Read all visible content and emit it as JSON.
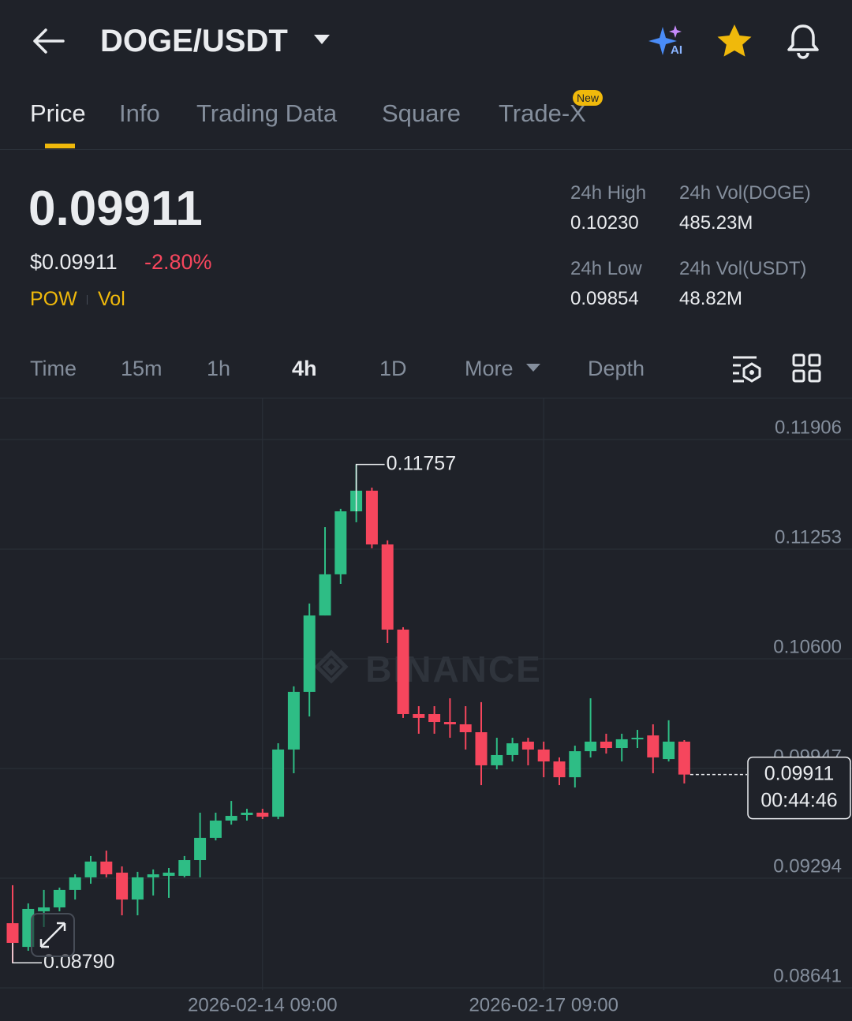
{
  "header": {
    "title": "DOGE/USDT"
  },
  "tabs": [
    "Price",
    "Info",
    "Trading Data",
    "Square",
    "Trade-X"
  ],
  "badge": "New",
  "price": {
    "last": "0.09911",
    "usd": "$0.09911",
    "change": "-2.80%",
    "tags": [
      "POW",
      "Vol"
    ]
  },
  "stats": [
    {
      "label": "24h High",
      "value": "0.10230"
    },
    {
      "label": "24h Vol(DOGE)",
      "value": "485.23M"
    },
    {
      "label": "24h Low",
      "value": "0.09854"
    },
    {
      "label": "24h Vol(USDT)",
      "value": "48.82M"
    }
  ],
  "intervals": [
    "Time",
    "15m",
    "1h",
    "4h",
    "1D",
    "More",
    "Depth"
  ],
  "chart_data": {
    "type": "candlestick",
    "watermark": "BINANCE",
    "categories": [
      null,
      null,
      null,
      null,
      null,
      null,
      null,
      null,
      null,
      null,
      null,
      null,
      null,
      null,
      null,
      null,
      "2026-02-14 09:00",
      null,
      null,
      null,
      null,
      null,
      null,
      null,
      null,
      null,
      null,
      null,
      null,
      null,
      null,
      null,
      null,
      null,
      "2026-02-17 09:00",
      null,
      null,
      null,
      null,
      null,
      null,
      null,
      null,
      null
    ],
    "open": [
      0.09026,
      0.08885,
      0.09097,
      0.0912,
      0.09224,
      0.09299,
      0.09393,
      0.09327,
      0.09167,
      0.09299,
      0.09308,
      0.09308,
      0.09402,
      0.09534,
      0.09637,
      0.0967,
      0.09684,
      0.0966,
      0.1006,
      0.10403,
      0.10858,
      0.11103,
      0.11478,
      0.11601,
      0.11281,
      0.10774,
      0.10271,
      0.10271,
      0.10224,
      0.1021,
      0.10163,
      0.09966,
      0.10027,
      0.10107,
      0.1006,
      0.09989,
      0.09895,
      0.1005,
      0.10107,
      0.10069,
      0.10121,
      0.10144,
      0.10003,
      0.10107
    ],
    "high": [
      0.09252,
      0.09144,
      0.09224,
      0.09238,
      0.09317,
      0.09426,
      0.09458,
      0.09364,
      0.09332,
      0.09346,
      0.09355,
      0.09426,
      0.09684,
      0.09684,
      0.09754,
      0.09707,
      0.09707,
      0.10097,
      0.10436,
      0.10929,
      0.11384,
      0.11493,
      0.11757,
      0.11619,
      0.11305,
      0.10788,
      0.10318,
      0.10318,
      0.10365,
      0.10318,
      0.10342,
      0.1013,
      0.1013,
      0.1013,
      0.10107,
      0.10013,
      0.10083,
      0.10365,
      0.10154,
      0.10154,
      0.10177,
      0.1021,
      0.10234,
      0.10116
    ],
    "low": [
      0.0879,
      0.08862,
      0.09003,
      0.09097,
      0.09167,
      0.09261,
      0.09299,
      0.09073,
      0.09073,
      0.09191,
      0.09177,
      0.09299,
      0.09299,
      0.09519,
      0.09613,
      0.09637,
      0.09646,
      0.09646,
      0.09919,
      0.10257,
      0.10858,
      0.11046,
      0.11413,
      0.11258,
      0.10694,
      0.10248,
      0.10154,
      0.10154,
      0.1013,
      0.1006,
      0.09848,
      0.09942,
      0.09989,
      0.09966,
      0.09895,
      0.09848,
      0.09834,
      0.10013,
      0.10036,
      0.09989,
      0.10069,
      0.09919,
      0.09989,
      0.09858
    ],
    "close": [
      0.08909,
      0.09111,
      0.0912,
      0.09224,
      0.09299,
      0.09393,
      0.09317,
      0.09167,
      0.09299,
      0.09317,
      0.09327,
      0.09402,
      0.09534,
      0.09637,
      0.09665,
      0.09684,
      0.0966,
      0.1006,
      0.10403,
      0.10858,
      0.11103,
      0.11478,
      0.11601,
      0.11281,
      0.10774,
      0.10271,
      0.10248,
      0.10224,
      0.1021,
      0.10163,
      0.09966,
      0.10027,
      0.10097,
      0.1006,
      0.09989,
      0.09895,
      0.1005,
      0.10107,
      0.10069,
      0.10121,
      0.1013,
      0.10013,
      0.10107,
      0.09911
    ],
    "up_color": "#2ebd85",
    "down_color": "#f6465d",
    "ylim": [
      0.08627,
      0.1215
    ],
    "yticks": [
      0.11906,
      0.11253,
      {
        "value": 0.106,
        "label": "0.10600"
      },
      0.09947,
      0.09294,
      0.08641
    ],
    "grid": true,
    "max_label": 0.11757,
    "min_label": {
      "value": 0.0879,
      "label": "0.08790"
    },
    "current_price": 0.09911,
    "countdown": "00:44:46"
  }
}
